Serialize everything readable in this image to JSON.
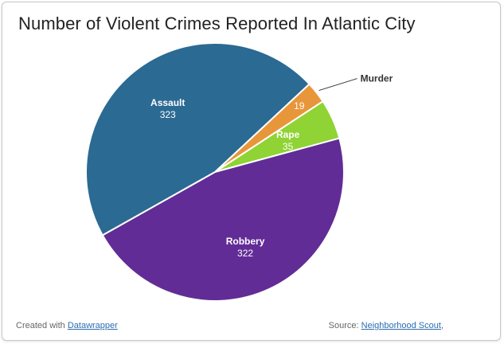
{
  "title": "Number of Violent Crimes Reported In Atlantic City",
  "footer": {
    "created_prefix": "Created with",
    "created_link": "Datawrapper",
    "source_prefix": "Source:",
    "source_link": "Neighborhood Scout",
    "source_suffix": ","
  },
  "chart_data": {
    "type": "pie",
    "title": "Number of Violent Crimes Reported In Atlantic City",
    "slices": [
      {
        "label": "Murder",
        "value": 19,
        "color": "#e8963a"
      },
      {
        "label": "Rape",
        "value": 35,
        "color": "#8fd334"
      },
      {
        "label": "Robbery",
        "value": 322,
        "color": "#622c96"
      },
      {
        "label": "Assault",
        "value": 323,
        "color": "#2b6a92"
      }
    ]
  }
}
